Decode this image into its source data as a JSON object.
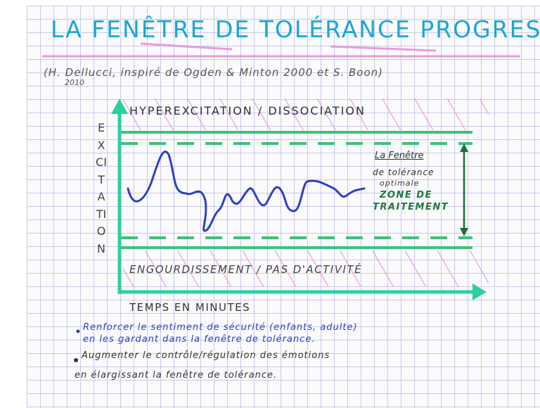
{
  "title": "LA FENÊTRE DE TOLÉRANCE PROGRESSIVE",
  "subtitle": "(H. Dellucci, inspiré de Ogden & Minton 2000 et S. Boon)",
  "year": "2010",
  "diagram": {
    "top_zone": "HYPEREXCITATION / DISSOCIATION",
    "y_axis": "EXCITATION",
    "window_title": "La Fenêtre",
    "window_subtitle": [
      "de tolérance",
      "optimale"
    ],
    "treatment_zone": [
      "ZONE DE",
      "TRAITEMENT"
    ],
    "bottom_zone": "ENGOURDISSEMENT / PAS D'ACTIVITÉ",
    "x_axis": "TEMPS EN MINUTES"
  },
  "bullets": [
    [
      "Renforcer le sentiment de sécurité (enfants, adulte)",
      "en les gardant dans la fenêtre de tolérance."
    ],
    [
      "Augmenter le contrôle/régulation des émotions",
      "en élargissant la fenêtre de tolérance."
    ]
  ]
}
